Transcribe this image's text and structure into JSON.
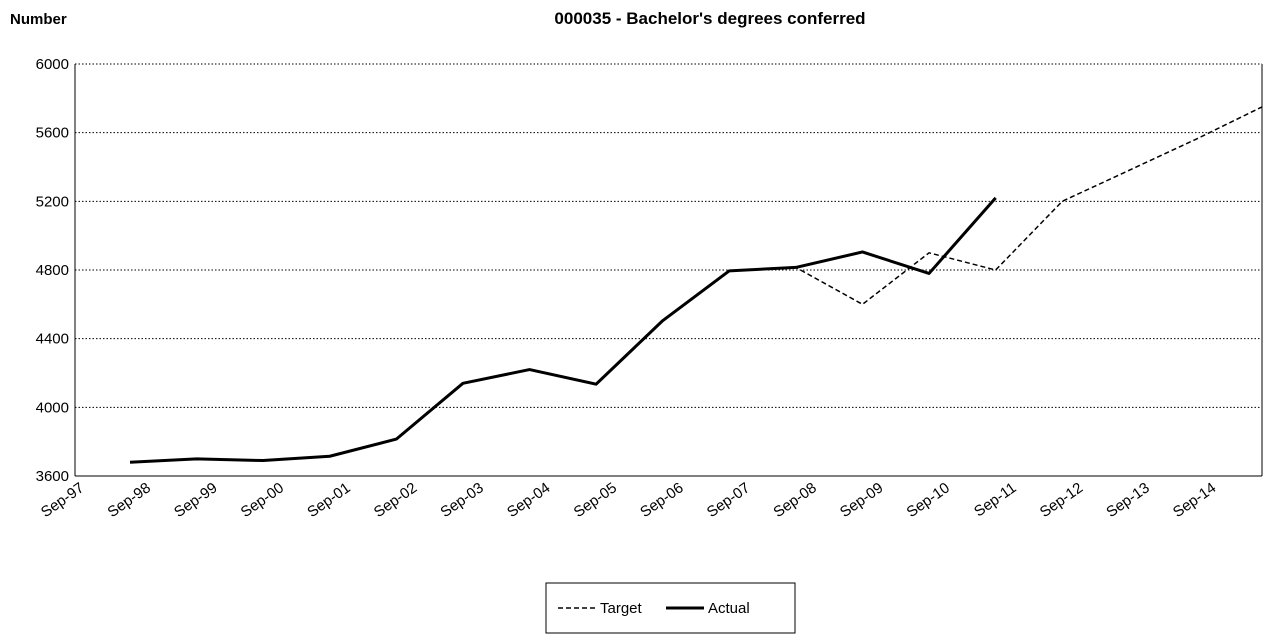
{
  "chart_data": {
    "type": "line",
    "title": "000035 - Bachelor's degrees conferred",
    "y_label": "Number",
    "categories": [
      "Sep-97",
      "Sep-98",
      "Sep-99",
      "Sep-00",
      "Sep-01",
      "Sep-02",
      "Sep-03",
      "Sep-04",
      "Sep-05",
      "Sep-06",
      "Sep-07",
      "Sep-08",
      "Sep-09",
      "Sep-10",
      "Sep-11",
      "Sep-12",
      "Sep-13",
      "Sep-14"
    ],
    "series": [
      {
        "name": "Target",
        "color": "#000000",
        "dash": true,
        "values": [
          null,
          null,
          null,
          null,
          null,
          null,
          null,
          null,
          null,
          4795,
          4815,
          4600,
          4900,
          4800,
          5200,
          5380,
          5560,
          5750
        ]
      },
      {
        "name": "Actual",
        "color": "#000000",
        "dash": false,
        "values": [
          3680,
          3700,
          3690,
          3715,
          3815,
          4140,
          4220,
          4135,
          4505,
          4795,
          4815,
          4905,
          4780,
          5220,
          null,
          null,
          null,
          null
        ]
      }
    ],
    "ylim": [
      3600,
      6000
    ],
    "yticks": [
      3600,
      4000,
      4400,
      4800,
      5200,
      5600,
      6000
    ],
    "grid": true,
    "legend": "bottom"
  }
}
